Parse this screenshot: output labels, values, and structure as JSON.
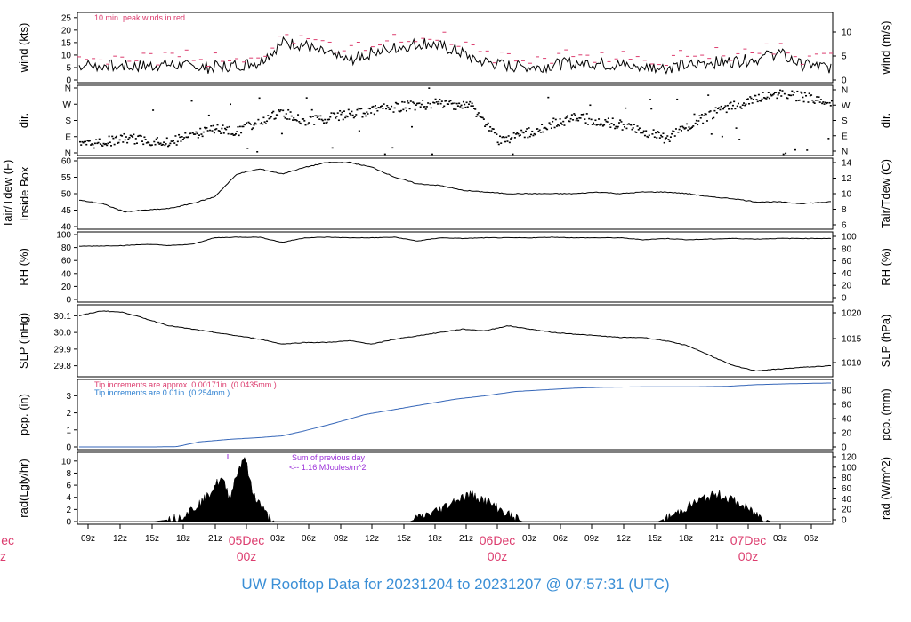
{
  "title": "UW Rooftop Data for 20231204  to  20231207 @ 07:57:31  (UTC)",
  "colors": {
    "title": "#3b8fd6",
    "peak": "#dc3c6e",
    "pcp_text_red": "#dc3c6e",
    "pcp_text_blue": "#2c7fd0",
    "rad_note": "#9b30d9",
    "series": "#000000",
    "pcp_line": "#3566b8",
    "date_label": "#dc3c6e"
  },
  "chart_data": {
    "type": "line",
    "x_axis": {
      "hour_ticks": [
        "09z",
        "12z",
        "15z",
        "18z",
        "21z",
        "03z",
        "06z",
        "09z",
        "12z",
        "15z",
        "18z",
        "21z",
        "03z",
        "06z",
        "09z",
        "12z",
        "15z",
        "18z",
        "21z",
        "03z",
        "06z"
      ],
      "date_labels": [
        {
          "date": "05Dec",
          "time": "00z"
        },
        {
          "date": "06Dec",
          "time": "00z"
        },
        {
          "date": "07Dec",
          "time": "00z"
        }
      ],
      "cut_label": {
        "date": "ec",
        "time": "z"
      }
    },
    "panels": [
      {
        "id": "wind",
        "left_label": "wind (kts)",
        "right_label": "wind (m/s)",
        "left_ticks": [
          "25",
          "20",
          "15",
          "10",
          "5",
          "0"
        ],
        "right_ticks": [
          "10",
          "5",
          "0"
        ],
        "left_range": [
          0,
          26
        ],
        "note": "10 min. peak winds in red",
        "series_shape": [
          [
            0,
            6
          ],
          [
            7,
            5.5
          ],
          [
            12,
            6
          ],
          [
            17,
            5
          ],
          [
            21,
            6
          ],
          [
            24,
            7
          ],
          [
            27,
            15
          ],
          [
            30,
            14
          ],
          [
            33,
            10
          ],
          [
            36,
            8
          ],
          [
            39,
            11
          ],
          [
            42,
            13
          ],
          [
            46,
            15
          ],
          [
            50,
            12
          ],
          [
            53,
            8
          ],
          [
            56,
            6
          ],
          [
            60,
            5
          ],
          [
            66,
            7
          ],
          [
            72,
            6
          ],
          [
            78,
            5
          ],
          [
            84,
            7
          ],
          [
            90,
            8
          ],
          [
            93,
            11
          ],
          [
            96,
            6
          ],
          [
            100,
            5
          ]
        ]
      },
      {
        "id": "dir",
        "left_label": "dir.",
        "right_label": "dir.",
        "left_ticks": [
          "N",
          "W",
          "S",
          "E",
          "N"
        ],
        "right_ticks": [
          "N",
          "W",
          "S",
          "E",
          "N"
        ],
        "series_shape": [
          [
            0,
            85
          ],
          [
            6,
            75
          ],
          [
            12,
            80
          ],
          [
            18,
            60
          ],
          [
            21,
            65
          ],
          [
            24,
            50
          ],
          [
            27,
            38
          ],
          [
            30,
            50
          ],
          [
            36,
            40
          ],
          [
            42,
            30
          ],
          [
            48,
            25
          ],
          [
            52,
            28
          ],
          [
            56,
            80
          ],
          [
            60,
            65
          ],
          [
            66,
            45
          ],
          [
            72,
            55
          ],
          [
            78,
            75
          ],
          [
            84,
            40
          ],
          [
            88,
            25
          ],
          [
            92,
            10
          ],
          [
            96,
            15
          ],
          [
            100,
            25
          ]
        ]
      },
      {
        "id": "temp",
        "left_label": "Tair/Tdew (F)",
        "left_label2": "Inside Box",
        "right_label": "Tair/Tdew (C)",
        "left_ticks": [
          "60",
          "55",
          "50",
          "45",
          "40"
        ],
        "right_ticks": [
          "14",
          "12",
          "10",
          "8",
          "6"
        ],
        "left_range": [
          40,
          60
        ],
        "series_shape": [
          [
            0,
            48
          ],
          [
            3,
            47
          ],
          [
            6,
            44.5
          ],
          [
            9,
            45
          ],
          [
            12,
            45.5
          ],
          [
            15,
            47
          ],
          [
            18,
            49
          ],
          [
            21,
            56
          ],
          [
            24,
            57.5
          ],
          [
            27,
            56
          ],
          [
            30,
            58
          ],
          [
            33,
            59.5
          ],
          [
            36,
            59.5
          ],
          [
            39,
            58
          ],
          [
            42,
            55
          ],
          [
            45,
            53
          ],
          [
            48,
            52.5
          ],
          [
            51,
            51
          ],
          [
            54,
            50.5
          ],
          [
            57,
            50
          ],
          [
            60,
            50
          ],
          [
            63,
            50
          ],
          [
            66,
            50
          ],
          [
            69,
            50.5
          ],
          [
            72,
            50
          ],
          [
            75,
            50.5
          ],
          [
            78,
            50.5
          ],
          [
            81,
            50
          ],
          [
            84,
            49
          ],
          [
            87,
            48.5
          ],
          [
            90,
            47.5
          ],
          [
            93,
            47.5
          ],
          [
            96,
            47
          ],
          [
            100,
            47.5
          ]
        ]
      },
      {
        "id": "rh",
        "left_label": "RH (%)",
        "right_label": "RH (%)",
        "left_ticks": [
          "100",
          "80",
          "60",
          "40",
          "20",
          "0"
        ],
        "right_ticks": [
          "100",
          "80",
          "60",
          "40",
          "20",
          "0"
        ],
        "left_range": [
          0,
          100
        ],
        "series_shape": [
          [
            0,
            82
          ],
          [
            6,
            83
          ],
          [
            9,
            85
          ],
          [
            12,
            83
          ],
          [
            15,
            85
          ],
          [
            18,
            95
          ],
          [
            21,
            96
          ],
          [
            24,
            96
          ],
          [
            27,
            88
          ],
          [
            30,
            95
          ],
          [
            33,
            96
          ],
          [
            36,
            95
          ],
          [
            39,
            95
          ],
          [
            42,
            96
          ],
          [
            45,
            90
          ],
          [
            48,
            95
          ],
          [
            51,
            94
          ],
          [
            54,
            95
          ],
          [
            57,
            95
          ],
          [
            60,
            95
          ],
          [
            63,
            96
          ],
          [
            66,
            95
          ],
          [
            69,
            95
          ],
          [
            72,
            95
          ],
          [
            75,
            92
          ],
          [
            78,
            94
          ],
          [
            81,
            92
          ],
          [
            84,
            93
          ],
          [
            87,
            94
          ],
          [
            90,
            93
          ],
          [
            93,
            94
          ],
          [
            96,
            94
          ],
          [
            100,
            94
          ]
        ]
      },
      {
        "id": "slp",
        "left_label": "SLP (inHg)",
        "right_label": "SLP (hPa)",
        "left_ticks": [
          "30.1",
          "30.0",
          "29.9",
          "29.8"
        ],
        "right_ticks": [
          "1020",
          "1015",
          "1010"
        ],
        "left_range": [
          29.75,
          30.15
        ],
        "series_shape": [
          [
            0,
            30.1
          ],
          [
            3,
            30.13
          ],
          [
            6,
            30.12
          ],
          [
            9,
            30.08
          ],
          [
            12,
            30.04
          ],
          [
            15,
            30.02
          ],
          [
            18,
            30.0
          ],
          [
            21,
            29.98
          ],
          [
            24,
            29.96
          ],
          [
            27,
            29.93
          ],
          [
            30,
            29.94
          ],
          [
            33,
            29.94
          ],
          [
            36,
            29.95
          ],
          [
            39,
            29.93
          ],
          [
            42,
            29.96
          ],
          [
            45,
            29.98
          ],
          [
            48,
            30.0
          ],
          [
            51,
            30.02
          ],
          [
            54,
            30.01
          ],
          [
            57,
            30.04
          ],
          [
            60,
            30.02
          ],
          [
            63,
            30.0
          ],
          [
            66,
            29.99
          ],
          [
            69,
            29.98
          ],
          [
            72,
            29.97
          ],
          [
            75,
            29.97
          ],
          [
            78,
            29.95
          ],
          [
            81,
            29.92
          ],
          [
            84,
            29.86
          ],
          [
            87,
            29.8
          ],
          [
            90,
            29.77
          ],
          [
            93,
            29.78
          ],
          [
            96,
            29.79
          ],
          [
            100,
            29.8
          ]
        ]
      },
      {
        "id": "pcp",
        "left_label": "pcp. (in)",
        "right_label": "pcp. (mm)",
        "left_ticks": [
          "3",
          "2",
          "1",
          "0"
        ],
        "right_ticks": [
          "80",
          "60",
          "40",
          "20",
          "0"
        ],
        "left_range": [
          0,
          3.8
        ],
        "notes": [
          "Tip increments are approx. 0.00171in. (0.0435mm.)",
          "Tip increments are 0.01in. (0.254mm.)"
        ],
        "series_shape": [
          [
            0,
            0
          ],
          [
            10,
            0
          ],
          [
            13,
            0.02
          ],
          [
            16,
            0.3
          ],
          [
            20,
            0.45
          ],
          [
            24,
            0.55
          ],
          [
            27,
            0.65
          ],
          [
            30,
            0.95
          ],
          [
            34,
            1.4
          ],
          [
            38,
            1.9
          ],
          [
            42,
            2.2
          ],
          [
            46,
            2.5
          ],
          [
            50,
            2.8
          ],
          [
            54,
            3.0
          ],
          [
            58,
            3.25
          ],
          [
            62,
            3.35
          ],
          [
            66,
            3.45
          ],
          [
            70,
            3.5
          ],
          [
            74,
            3.52
          ],
          [
            78,
            3.53
          ],
          [
            82,
            3.53
          ],
          [
            86,
            3.55
          ],
          [
            90,
            3.65
          ],
          [
            94,
            3.7
          ],
          [
            100,
            3.75
          ]
        ]
      },
      {
        "id": "rad",
        "left_label": "rad(Lgly/hr)",
        "right_label": "rad (W/m^2)",
        "left_ticks": [
          "10",
          "8",
          "6",
          "4",
          "2",
          "0"
        ],
        "right_ticks": [
          "120",
          "100",
          "80",
          "60",
          "40",
          "20",
          "0"
        ],
        "left_range": [
          0,
          11
        ],
        "note_lines": [
          "Sum of previous day",
          "<-- 1.16 MJoules/m^2"
        ],
        "series_shape": [
          [
            10,
            0
          ],
          [
            13,
            0.5
          ],
          [
            15,
            2
          ],
          [
            17,
            4
          ],
          [
            18,
            6
          ],
          [
            19,
            7
          ],
          [
            20,
            4
          ],
          [
            21,
            8
          ],
          [
            22,
            11
          ],
          [
            23,
            5
          ],
          [
            24,
            3
          ],
          [
            25,
            1
          ],
          [
            26,
            0
          ],
          [
            44,
            0
          ],
          [
            46,
            1
          ],
          [
            48,
            2
          ],
          [
            50,
            3.5
          ],
          [
            52,
            4.5
          ],
          [
            54,
            3.5
          ],
          [
            56,
            2
          ],
          [
            58,
            0.5
          ],
          [
            59,
            0
          ],
          [
            77,
            0
          ],
          [
            79,
            1
          ],
          [
            81,
            2.5
          ],
          [
            83,
            3.8
          ],
          [
            85,
            4.5
          ],
          [
            87,
            3.5
          ],
          [
            89,
            2
          ],
          [
            91,
            0.5
          ],
          [
            92,
            0
          ]
        ]
      }
    ]
  }
}
